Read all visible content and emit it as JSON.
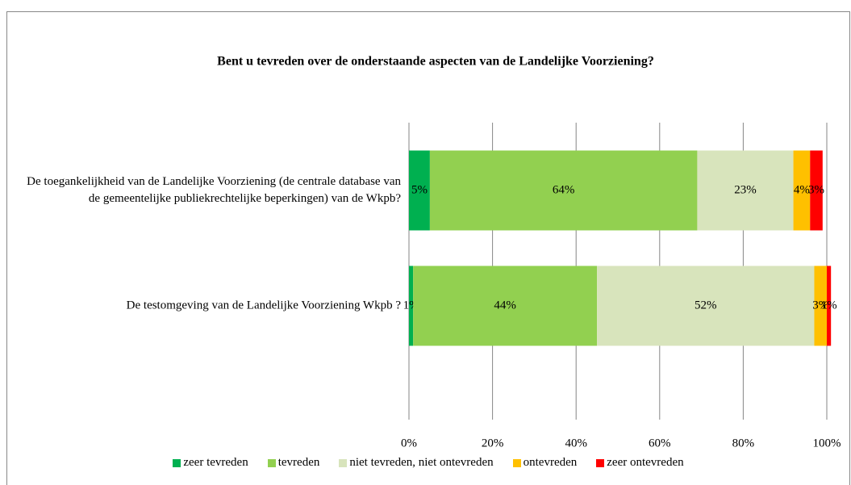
{
  "chart_data": {
    "type": "stacked-bar-horizontal",
    "title": "Bent u tevreden over de onderstaande aspecten van de Landelijke Voorziening?",
    "categories": [
      "De toegankelijkheid van de Landelijke Voorziening (de centrale database van de gemeentelijke publiekrechtelijke beperkingen) van de Wkpb?",
      "De testomgeving van de Landelijke Voorziening Wkpb ?"
    ],
    "series": [
      {
        "name": "zeer tevreden",
        "color": "#00b050",
        "values": [
          5,
          1
        ],
        "value_labels": [
          "5%",
          "1%"
        ]
      },
      {
        "name": "tevreden",
        "color": "#92d050",
        "values": [
          64,
          44
        ],
        "value_labels": [
          "64%",
          "44%"
        ]
      },
      {
        "name": "niet tevreden, niet ontevreden",
        "color": "#d8e4bc",
        "values": [
          23,
          52
        ],
        "value_labels": [
          "23%",
          "52%"
        ]
      },
      {
        "name": "ontevreden",
        "color": "#ffc000",
        "values": [
          4,
          3
        ],
        "value_labels": [
          "4%",
          "3%"
        ]
      },
      {
        "name": "zeer ontevreden",
        "color": "#ff0000",
        "values": [
          3,
          1
        ],
        "value_labels": [
          "3%",
          "1%"
        ]
      }
    ],
    "xlim": [
      0,
      100
    ],
    "xticks": [
      {
        "value": 0,
        "label": "0%"
      },
      {
        "value": 20,
        "label": "20%"
      },
      {
        "value": 40,
        "label": "40%"
      },
      {
        "value": 60,
        "label": "60%"
      },
      {
        "value": 80,
        "label": "80%"
      },
      {
        "value": 100,
        "label": "100%"
      }
    ],
    "grid": true,
    "legend": "bottom"
  }
}
